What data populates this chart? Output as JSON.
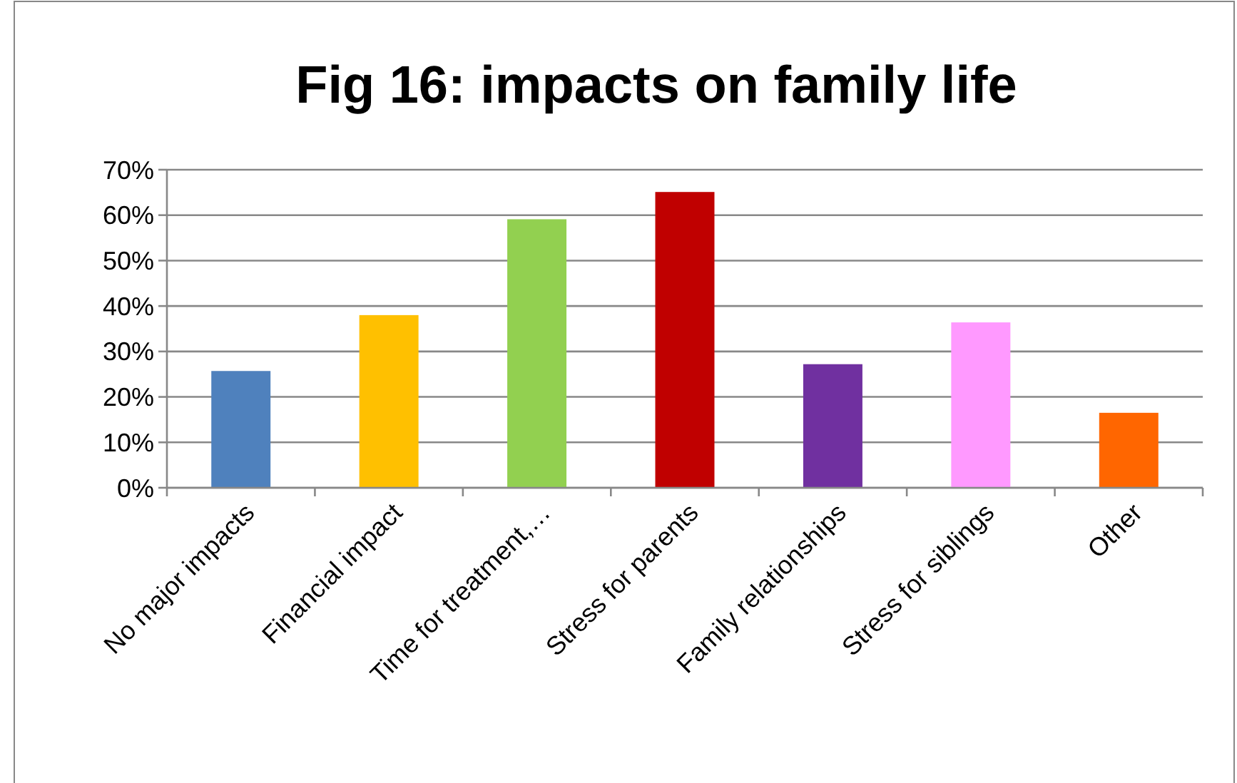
{
  "chart_data": {
    "type": "bar",
    "title": "Fig 16: impacts on family life",
    "categories": [
      "No major impacts",
      "Financial impact",
      "Time for treatment,…",
      "Stress for parents",
      "Family relationships",
      "Stress for siblings",
      "Other"
    ],
    "values": [
      0.257,
      0.38,
      0.591,
      0.651,
      0.272,
      0.364,
      0.165
    ],
    "colors": [
      "#4f81bd",
      "#ffc000",
      "#92d050",
      "#c00000",
      "#7030a0",
      "#ff99ff",
      "#ff6600"
    ],
    "ylim": [
      0,
      0.7
    ],
    "yticks": [
      {
        "value": 0,
        "label": "0%"
      },
      {
        "value": 0.1,
        "label": "10%"
      },
      {
        "value": 0.2,
        "label": "20%"
      },
      {
        "value": 0.3,
        "label": "30%"
      },
      {
        "value": 0.4,
        "label": "40%"
      },
      {
        "value": 0.5,
        "label": "50%"
      },
      {
        "value": 0.6,
        "label": "60%"
      },
      {
        "value": 0.7,
        "label": "70%"
      }
    ],
    "grid": "y"
  }
}
